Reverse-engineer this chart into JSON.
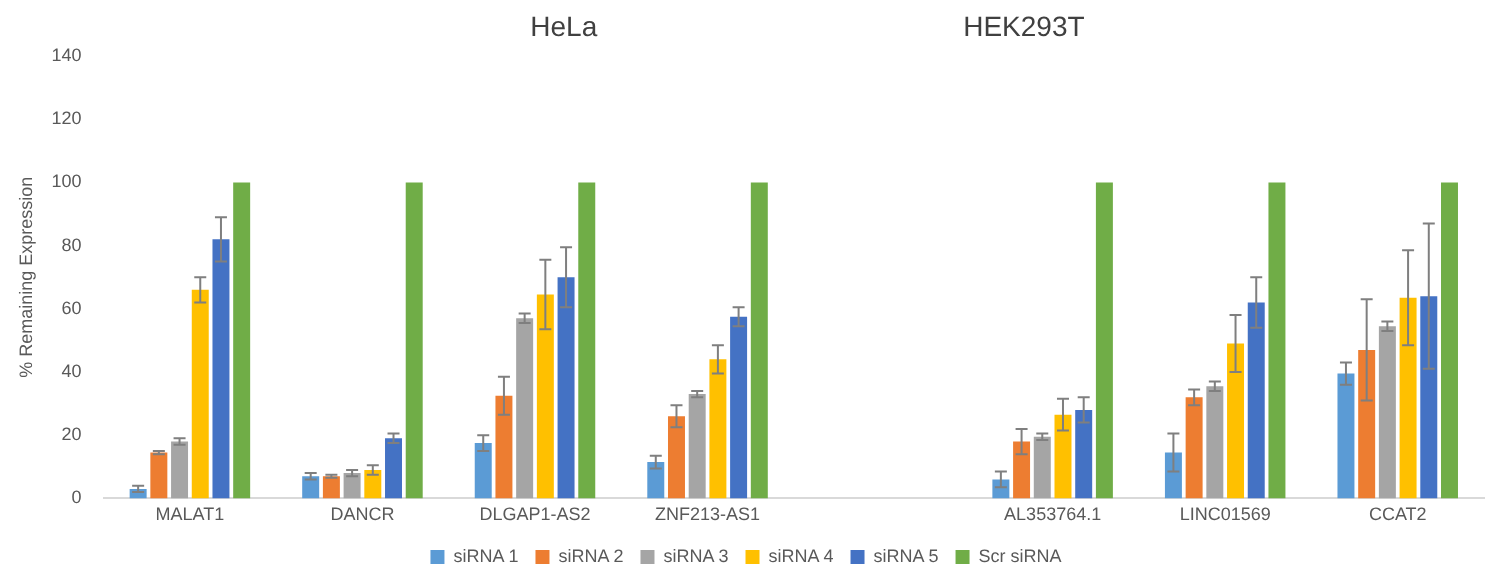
{
  "chart_data": {
    "type": "bar",
    "ylabel": "% Remaining Expression",
    "annotations": [
      "HeLa",
      "HEK293T"
    ],
    "categories": [
      "MALAT1",
      "DANCR",
      "DLGAP1-AS2",
      "ZNF213-AS1",
      null,
      "AL353764.1",
      "LINC01569",
      "CCAT2"
    ],
    "series": [
      {
        "name": "siRNA 1",
        "color": "#5b9bd5",
        "values": [
          3,
          7,
          17.5,
          11.5,
          null,
          6,
          14.5,
          39.5
        ],
        "errors": [
          1,
          1,
          2.5,
          2,
          null,
          2.5,
          6,
          3.5
        ]
      },
      {
        "name": "siRNA 2",
        "color": "#ed7d31",
        "values": [
          14.5,
          7,
          32.5,
          26,
          null,
          18,
          32,
          47
        ],
        "errors": [
          0.5,
          0.5,
          6,
          3.5,
          null,
          4,
          2.5,
          16
        ]
      },
      {
        "name": "siRNA 3",
        "color": "#a5a5a5",
        "values": [
          18,
          8,
          57,
          33,
          null,
          19.5,
          35.5,
          54.5
        ],
        "errors": [
          1,
          1,
          1.5,
          1,
          null,
          1,
          1.5,
          1.5
        ]
      },
      {
        "name": "siRNA 4",
        "color": "#ffc000",
        "values": [
          66,
          9,
          64.5,
          44,
          null,
          26.5,
          49,
          63.5
        ],
        "errors": [
          4,
          1.5,
          11,
          4.5,
          null,
          5,
          9,
          15
        ]
      },
      {
        "name": "siRNA 5",
        "color": "#4472c4",
        "values": [
          82,
          19,
          70,
          57.5,
          null,
          28,
          62,
          64
        ],
        "errors": [
          7,
          1.5,
          9.5,
          3,
          null,
          4,
          8,
          23
        ]
      },
      {
        "name": "Scr siRNA",
        "color": "#70ad47",
        "values": [
          100,
          100,
          100,
          100,
          null,
          100,
          100,
          100
        ]
      }
    ],
    "ylim": [
      0,
      140
    ],
    "yticks": [
      0,
      20,
      40,
      60,
      80,
      100,
      120,
      140
    ],
    "legend": "bottom"
  }
}
